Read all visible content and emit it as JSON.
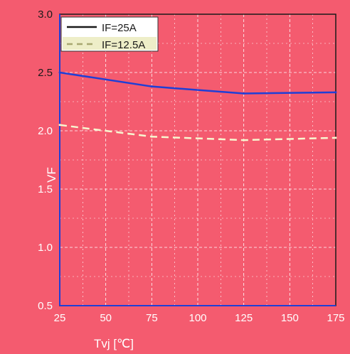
{
  "chart_data": {
    "type": "line",
    "xlabel": "Tvj [℃]",
    "ylabel": "VF",
    "x_ticks": [
      "25",
      "50",
      "75",
      "100",
      "125",
      "150",
      "175"
    ],
    "y_ticks": [
      "0.5",
      "1.0",
      "1.5",
      "2.0",
      "2.5",
      "3.0"
    ],
    "xlim": [
      25,
      175
    ],
    "ylim": [
      0.5,
      3.0
    ],
    "grid": true,
    "legend_position": "top-left",
    "series": [
      {
        "name": "IF=25A",
        "style": "solid",
        "color": "#1a1a1a",
        "x": [
          25,
          75,
          125,
          175
        ],
        "y": [
          2.5,
          2.38,
          2.32,
          2.33
        ]
      },
      {
        "name": "IF=12.5A",
        "style": "dashed",
        "color": "#cfcf8a",
        "x": [
          25,
          75,
          125,
          175
        ],
        "y": [
          2.05,
          1.95,
          1.92,
          1.94
        ]
      }
    ]
  }
}
